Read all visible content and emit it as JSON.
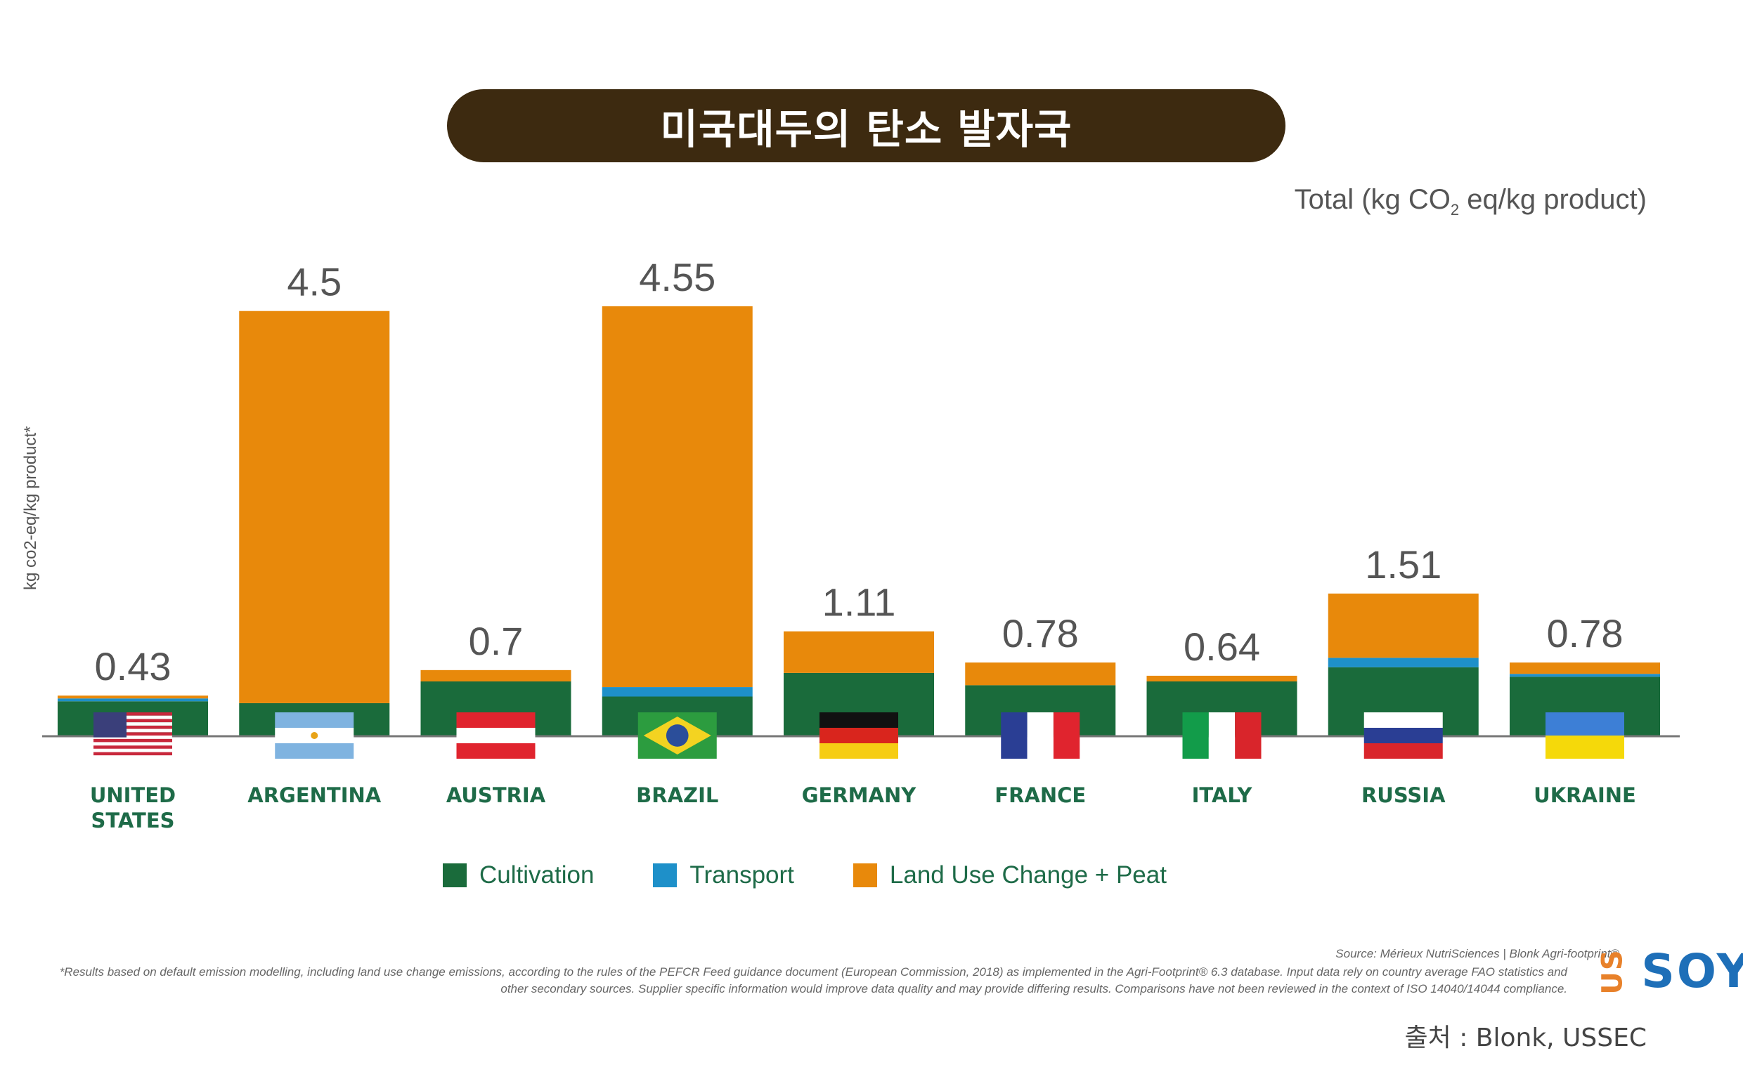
{
  "title": "미국대두의 탄소 발자국",
  "unit_label_before": "Total (kg CO",
  "unit_label_sub": "2",
  "unit_label_after": " eq/kg product)",
  "colors": {
    "cultivation": "#1a6b3b",
    "transport": "#1e90c9",
    "land_use": "#e8890b",
    "title_bg": "#3d2a10",
    "country_label": "#1e6b48"
  },
  "chart_data": {
    "type": "bar",
    "stacked": true,
    "title": "미국대두의 탄소 발자국",
    "ylabel": "kg co2-eq/kg product*",
    "xlabel": "",
    "ylim": [
      0,
      4.55
    ],
    "grid": false,
    "legend_position": "bottom",
    "categories": [
      "UNITED STATES",
      "ARGENTINA",
      "AUSTRIA",
      "BRAZIL",
      "GERMANY",
      "FRANCE",
      "ITALY",
      "RUSSIA",
      "UKRAINE"
    ],
    "category_lines": [
      [
        "UNITED",
        "STATES"
      ],
      [
        "ARGENTINA"
      ],
      [
        "AUSTRIA"
      ],
      [
        "BRAZIL"
      ],
      [
        "GERMANY"
      ],
      [
        "FRANCE"
      ],
      [
        "ITALY"
      ],
      [
        "RUSSIA"
      ],
      [
        "UKRAINE"
      ]
    ],
    "flags": [
      "us-flag",
      "argentina-flag",
      "austria-flag",
      "brazil-flag",
      "germany-flag",
      "france-flag",
      "italy-flag",
      "russia-flag",
      "ukraine-flag"
    ],
    "totals": [
      "0.43",
      "4.5",
      "0.7",
      "4.55",
      "1.11",
      "0.78",
      "0.64",
      "1.51",
      "0.78"
    ],
    "series": [
      {
        "name": "Cultivation",
        "values": [
          0.37,
          0.35,
          0.58,
          0.42,
          0.67,
          0.54,
          0.58,
          0.73,
          0.63
        ]
      },
      {
        "name": "Transport",
        "values": [
          0.03,
          0.0,
          0.0,
          0.1,
          0.0,
          0.0,
          0.0,
          0.1,
          0.03
        ]
      },
      {
        "name": "Land Use Change + Peat",
        "values": [
          0.03,
          4.15,
          0.12,
          4.03,
          0.44,
          0.24,
          0.06,
          0.68,
          0.12
        ]
      }
    ]
  },
  "legend": {
    "cultivation": "Cultivation",
    "transport": "Transport",
    "land_use": "Land Use Change + Peat"
  },
  "source": "Source: Mérieux NutriSciences | Blonk Agri-footprint®",
  "footnote": "*Results based on default emission modelling, including land use change emissions, according to the rules of the PEFCR Feed guidance document (European Commission, 2018) as implemented in the Agri-Footprint® 6.3 database. Input data rely on country average FAO statistics and other secondary sources. Supplier specific information would improve data quality and may provide differing results. Comparisons have not been reviewed in the context of ISO 14040/14044 compliance.",
  "logo": {
    "us": "US",
    "soy": "SOY"
  },
  "credit": "출처 : Blonk, USSEC"
}
